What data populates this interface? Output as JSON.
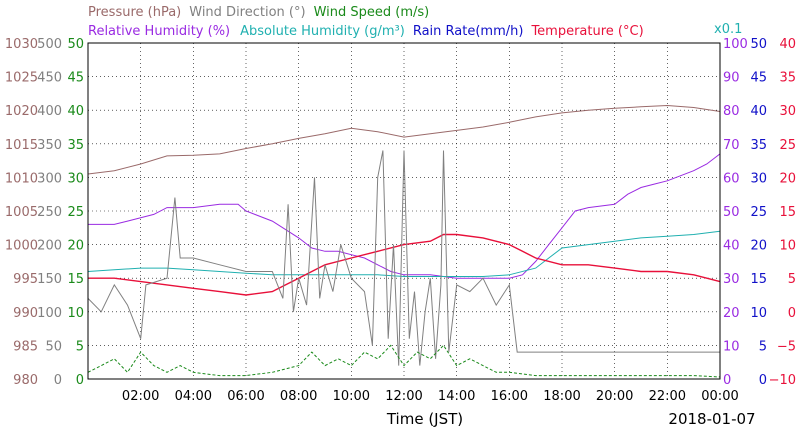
{
  "chart_data": {
    "type": "line",
    "date": "2018-01-07",
    "xlabel": "Time (JST)",
    "x_ticks": [
      "02:00",
      "04:00",
      "06:00",
      "08:00",
      "10:00",
      "12:00",
      "14:00",
      "16:00",
      "18:00",
      "20:00",
      "22:00",
      "00:00"
    ],
    "xlim_hours": [
      0,
      24
    ],
    "legend_row1": [
      {
        "name": "Pressure (hPa)",
        "color": "#9a6a6a"
      },
      {
        "name": "Wind Direction (°)",
        "color": "#808080"
      },
      {
        "name": "Wind Speed (m/s)",
        "color": "#1a8a1a"
      }
    ],
    "legend_row2": [
      {
        "name": "Relative Humidity (%)",
        "color": "#9a2be2"
      },
      {
        "name": "Absolute Humidity (g/m³)",
        "color": "#20b0b0"
      },
      {
        "name": "Rain Rate(mm/h)",
        "color": "#1010c8"
      },
      {
        "name": "Temperature (°C)",
        "color": "#e8103a"
      }
    ],
    "abs_humidity_scale_note": "x0.1",
    "axes": {
      "pressure": {
        "min": 980,
        "max": 1030,
        "ticks": [
          "1030",
          "1025",
          "1020",
          "1015",
          "1010",
          "1005",
          "1000",
          "995",
          "990",
          "985",
          "980"
        ],
        "color": "#9a6a6a"
      },
      "wind_direction": {
        "min": 0,
        "max": 500,
        "ticks": [
          "500",
          "450",
          "400",
          "350",
          "300",
          "250",
          "200",
          "150",
          "100",
          "50",
          "0"
        ],
        "color": "#808080"
      },
      "wind_speed": {
        "min": 0,
        "max": 50,
        "ticks": [
          "50",
          "45",
          "40",
          "35",
          "30",
          "25",
          "20",
          "15",
          "10",
          "5",
          "0"
        ],
        "color": "#1a8a1a"
      },
      "relative_humidity": {
        "min": 0,
        "max": 100,
        "ticks": [
          "100",
          "90",
          "80",
          "70",
          "60",
          "50",
          "40",
          "30",
          "20",
          "10",
          "0"
        ],
        "color": "#9a2be2"
      },
      "rain_rate": {
        "min": 0,
        "max": 50,
        "ticks": [
          "50",
          "45",
          "40",
          "35",
          "30",
          "25",
          "20",
          "15",
          "10",
          "5",
          "0"
        ],
        "color": "#1010c8"
      },
      "temperature": {
        "min": -10,
        "max": 40,
        "ticks": [
          "40",
          "35",
          "30",
          "25",
          "20",
          "15",
          "10",
          "5",
          "0",
          "−5",
          "−10"
        ],
        "color": "#e8103a"
      }
    },
    "grid": true,
    "series": [
      {
        "name": "Pressure (hPa)",
        "axis": "pressure",
        "color": "#9a6a6a",
        "points": [
          [
            0,
            1010.5
          ],
          [
            1,
            1011
          ],
          [
            2,
            1012
          ],
          [
            3,
            1013.2
          ],
          [
            4,
            1013.3
          ],
          [
            5,
            1013.5
          ],
          [
            6,
            1014.3
          ],
          [
            7,
            1015
          ],
          [
            8,
            1015.8
          ],
          [
            9,
            1016.5
          ],
          [
            10,
            1017.3
          ],
          [
            11,
            1016.8
          ],
          [
            12,
            1016
          ],
          [
            13,
            1016.5
          ],
          [
            14,
            1017
          ],
          [
            15,
            1017.5
          ],
          [
            16,
            1018.2
          ],
          [
            17,
            1019
          ],
          [
            18,
            1019.6
          ],
          [
            19,
            1020
          ],
          [
            20,
            1020.3
          ],
          [
            21,
            1020.5
          ],
          [
            22,
            1020.7
          ],
          [
            23,
            1020.4
          ],
          [
            24,
            1019.8
          ]
        ]
      },
      {
        "name": "Relative Humidity (%)",
        "axis": "relative_humidity",
        "color": "#9a2be2",
        "points": [
          [
            0,
            46
          ],
          [
            1,
            46
          ],
          [
            1.5,
            47
          ],
          [
            2.5,
            49
          ],
          [
            3,
            51
          ],
          [
            4,
            51
          ],
          [
            5,
            52
          ],
          [
            5.7,
            52
          ],
          [
            6,
            50
          ],
          [
            7,
            47
          ],
          [
            8,
            42
          ],
          [
            8.5,
            39
          ],
          [
            9,
            38
          ],
          [
            9.5,
            38
          ],
          [
            10,
            37
          ],
          [
            10.5,
            36
          ],
          [
            11,
            34
          ],
          [
            11.5,
            32
          ],
          [
            12,
            31
          ],
          [
            13,
            31
          ],
          [
            14,
            30
          ],
          [
            15,
            30
          ],
          [
            16,
            30
          ],
          [
            16.5,
            31
          ],
          [
            17,
            35
          ],
          [
            17.5,
            40
          ],
          [
            18,
            45
          ],
          [
            18.5,
            50
          ],
          [
            19,
            51
          ],
          [
            20,
            52
          ],
          [
            20.5,
            55
          ],
          [
            21,
            57
          ],
          [
            21.5,
            58
          ],
          [
            22,
            59
          ],
          [
            23,
            62
          ],
          [
            23.5,
            64
          ],
          [
            24,
            67
          ]
        ]
      },
      {
        "name": "Absolute Humidity (g/m³)",
        "axis": "relative_humidity",
        "color": "#20b0b0",
        "points": [
          [
            0,
            32
          ],
          [
            1,
            32.5
          ],
          [
            2,
            33
          ],
          [
            3,
            33
          ],
          [
            4,
            32.5
          ],
          [
            5,
            32
          ],
          [
            6,
            31.5
          ],
          [
            7,
            31
          ],
          [
            8,
            31
          ],
          [
            9,
            31
          ],
          [
            10,
            31
          ],
          [
            11,
            31
          ],
          [
            12,
            30.5
          ],
          [
            13,
            30.5
          ],
          [
            14,
            30.5
          ],
          [
            15,
            30.5
          ],
          [
            16,
            31
          ],
          [
            17,
            33
          ],
          [
            17.5,
            36
          ],
          [
            18,
            39
          ],
          [
            19,
            40
          ],
          [
            20,
            41
          ],
          [
            21,
            42
          ],
          [
            22,
            42.5
          ],
          [
            23,
            43
          ],
          [
            24,
            44
          ]
        ]
      },
      {
        "name": "Temperature (°C)",
        "axis": "temperature",
        "color": "#e8103a",
        "points": [
          [
            0,
            5
          ],
          [
            1,
            5
          ],
          [
            2,
            4.5
          ],
          [
            3,
            4
          ],
          [
            4,
            3.5
          ],
          [
            5,
            3
          ],
          [
            6,
            2.5
          ],
          [
            7,
            3
          ],
          [
            7.5,
            4
          ],
          [
            8,
            5
          ],
          [
            8.5,
            6
          ],
          [
            9,
            7
          ],
          [
            10,
            8
          ],
          [
            11,
            9
          ],
          [
            12,
            10
          ],
          [
            13,
            10.5
          ],
          [
            13.5,
            11.5
          ],
          [
            14,
            11.5
          ],
          [
            15,
            11
          ],
          [
            16,
            10
          ],
          [
            16.5,
            9
          ],
          [
            17,
            8
          ],
          [
            18,
            7
          ],
          [
            19,
            7
          ],
          [
            20,
            6.5
          ],
          [
            21,
            6
          ],
          [
            22,
            6
          ],
          [
            23,
            5.5
          ],
          [
            24,
            4.5
          ]
        ]
      },
      {
        "name": "Wind Direction (°)",
        "axis": "wind_direction",
        "color": "#808080",
        "points": [
          [
            0,
            120
          ],
          [
            0.5,
            100
          ],
          [
            1,
            140
          ],
          [
            1.5,
            110
          ],
          [
            2,
            60
          ],
          [
            2.2,
            140
          ],
          [
            3,
            150
          ],
          [
            3.3,
            270
          ],
          [
            3.5,
            180
          ],
          [
            4,
            180
          ],
          [
            5,
            170
          ],
          [
            6,
            160
          ],
          [
            7,
            160
          ],
          [
            7.4,
            120
          ],
          [
            7.6,
            260
          ],
          [
            7.8,
            100
          ],
          [
            8,
            150
          ],
          [
            8.3,
            110
          ],
          [
            8.6,
            300
          ],
          [
            8.8,
            120
          ],
          [
            9,
            170
          ],
          [
            9.3,
            130
          ],
          [
            9.6,
            200
          ],
          [
            10,
            150
          ],
          [
            10.5,
            130
          ],
          [
            10.8,
            50
          ],
          [
            11,
            300
          ],
          [
            11.2,
            340
          ],
          [
            11.4,
            60
          ],
          [
            11.6,
            200
          ],
          [
            11.8,
            20
          ],
          [
            12,
            340
          ],
          [
            12.2,
            60
          ],
          [
            12.4,
            130
          ],
          [
            12.6,
            20
          ],
          [
            12.8,
            100
          ],
          [
            13,
            150
          ],
          [
            13.2,
            30
          ],
          [
            13.4,
            140
          ],
          [
            13.5,
            340
          ],
          [
            13.7,
            40
          ],
          [
            14,
            140
          ],
          [
            14.5,
            130
          ],
          [
            15,
            150
          ],
          [
            15.5,
            110
          ],
          [
            16,
            140
          ],
          [
            16.3,
            40
          ],
          [
            16.5,
            40
          ],
          [
            17,
            40
          ],
          [
            18,
            40
          ],
          [
            19,
            40
          ],
          [
            20,
            40
          ],
          [
            21,
            40
          ],
          [
            22,
            40
          ],
          [
            23,
            40
          ],
          [
            24,
            40
          ]
        ]
      },
      {
        "name": "Wind Speed (m/s)",
        "axis": "wind_speed",
        "color": "#1a8a1a",
        "points": [
          [
            0,
            1
          ],
          [
            0.5,
            2
          ],
          [
            1,
            3
          ],
          [
            1.5,
            1
          ],
          [
            2,
            4
          ],
          [
            2.5,
            2
          ],
          [
            3,
            1
          ],
          [
            3.5,
            2
          ],
          [
            4,
            1
          ],
          [
            5,
            0.5
          ],
          [
            6,
            0.5
          ],
          [
            7,
            1
          ],
          [
            8,
            2
          ],
          [
            8.5,
            4
          ],
          [
            9,
            2
          ],
          [
            9.5,
            3
          ],
          [
            10,
            2
          ],
          [
            10.5,
            4
          ],
          [
            11,
            3
          ],
          [
            11.5,
            5
          ],
          [
            12,
            2
          ],
          [
            12.5,
            4
          ],
          [
            13,
            3
          ],
          [
            13.5,
            5
          ],
          [
            14,
            2
          ],
          [
            14.5,
            3
          ],
          [
            15,
            2
          ],
          [
            15.5,
            1
          ],
          [
            16,
            1
          ],
          [
            17,
            0.5
          ],
          [
            18,
            0.5
          ],
          [
            19,
            0.5
          ],
          [
            20,
            0.5
          ],
          [
            21,
            0.5
          ],
          [
            22,
            0.5
          ],
          [
            23,
            0.5
          ],
          [
            24,
            0.3
          ]
        ]
      },
      {
        "name": "Rain Rate(mm/h)",
        "axis": "rain_rate",
        "color": "#1010c8",
        "points": [
          [
            0,
            0
          ],
          [
            24,
            0
          ]
        ]
      }
    ]
  }
}
